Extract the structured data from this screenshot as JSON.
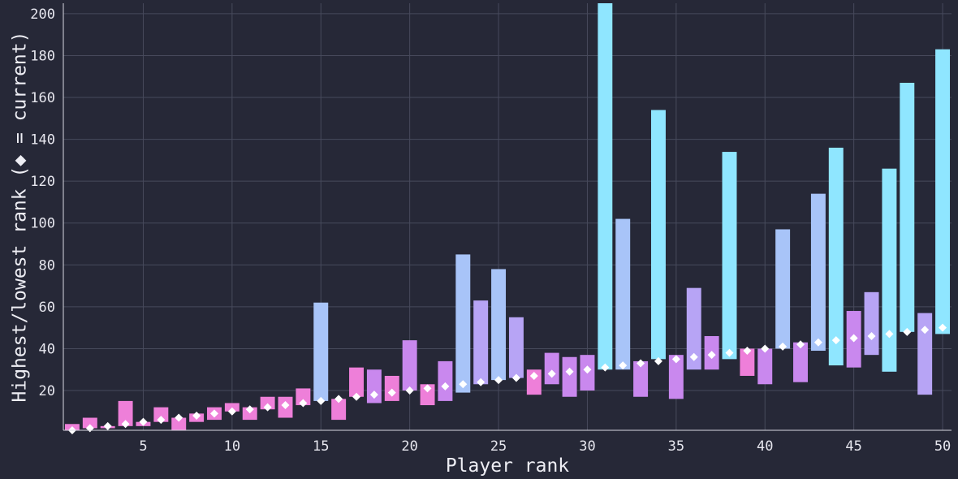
{
  "chart_data": {
    "type": "bar",
    "title": "",
    "xlabel": "Player rank",
    "ylabel": "Highest/lowest rank (◆ = current)",
    "xlim": [
      0.5,
      50.5
    ],
    "ylim": [
      1,
      205
    ],
    "x_ticks": [
      5,
      10,
      15,
      20,
      25,
      30,
      35,
      40,
      45,
      50
    ],
    "y_ticks": [
      20,
      40,
      60,
      80,
      100,
      120,
      140,
      160,
      180,
      200
    ],
    "grid": true,
    "legend": "none",
    "colors": {
      "background": "#262837",
      "grid": "#474a5c",
      "axis": "#d8d8e0",
      "marker": "#ffffff",
      "bar_short_range": "#ee7fd9",
      "bar_medium_range": "#b7a4f5",
      "bar_long_range": "#8fe6ff"
    },
    "series": [
      {
        "x": [
          1,
          2,
          3,
          4,
          5,
          6,
          7,
          8,
          9,
          10,
          11,
          12,
          13,
          14,
          15,
          16,
          17,
          18,
          19,
          20,
          21,
          22,
          23,
          24,
          25,
          26,
          27,
          28,
          29,
          30,
          31,
          32,
          33,
          34,
          35,
          36,
          37,
          38,
          39,
          40,
          41,
          42,
          43,
          44,
          45,
          46,
          47,
          48,
          49,
          50
        ],
        "low": [
          1,
          2,
          2,
          3,
          3,
          5,
          1,
          5,
          6,
          10,
          6,
          11,
          7,
          13,
          15,
          6,
          17,
          14,
          15,
          20,
          13,
          15,
          19,
          23,
          25,
          26,
          18,
          23,
          17,
          20,
          30,
          30,
          17,
          35,
          16,
          30,
          30,
          35,
          27,
          23,
          40,
          24,
          39,
          32,
          31,
          37,
          29,
          48,
          18,
          47
        ],
        "high": [
          4,
          7,
          3,
          15,
          5,
          12,
          7,
          9,
          12,
          14,
          12,
          17,
          17,
          21,
          62,
          16,
          31,
          30,
          27,
          44,
          23,
          34,
          85,
          63,
          78,
          55,
          30,
          38,
          36,
          37,
          205,
          102,
          34,
          154,
          37,
          69,
          46,
          134,
          40,
          40,
          97,
          43,
          114,
          136,
          58,
          67,
          126,
          167,
          57,
          183
        ],
        "current": [
          1,
          2,
          3,
          4,
          5,
          6,
          7,
          8,
          9,
          10,
          11,
          12,
          13,
          14,
          15,
          16,
          17,
          18,
          19,
          20,
          21,
          22,
          23,
          24,
          25,
          26,
          27,
          28,
          29,
          30,
          31,
          32,
          33,
          34,
          35,
          36,
          37,
          38,
          39,
          40,
          41,
          42,
          43,
          44,
          45,
          46,
          47,
          48,
          49,
          50
        ]
      }
    ]
  }
}
